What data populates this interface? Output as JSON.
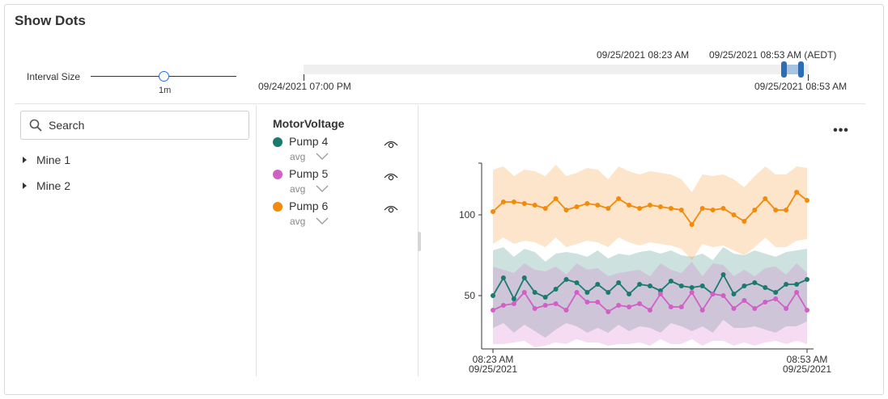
{
  "panel": {
    "title": "Show Dots"
  },
  "interval": {
    "label": "Interval Size",
    "value_label": "1m"
  },
  "timeline": {
    "start_label": "09/24/2021 07:00 PM",
    "end_label": "09/25/2021 08:53 AM",
    "selection_start_label": "09/25/2021 08:23 AM",
    "selection_end_label": "09/25/2021 08:53 AM (AEDT)"
  },
  "search": {
    "placeholder": "Search",
    "value": ""
  },
  "tree": {
    "items": [
      {
        "label": "Mine 1"
      },
      {
        "label": "Mine 2"
      }
    ]
  },
  "legend": {
    "title": "MotorVoltage",
    "items": [
      {
        "name": "Pump 4",
        "aggregation": "avg",
        "color": "#1b7a6e"
      },
      {
        "name": "Pump 5",
        "aggregation": "avg",
        "color": "#d160c6"
      },
      {
        "name": "Pump 6",
        "aggregation": "avg",
        "color": "#f28a0c"
      }
    ]
  },
  "chart_data": {
    "type": "line",
    "show_dots": true,
    "y_ticks": [
      50,
      100
    ],
    "ylim": [
      17,
      132
    ],
    "x_start": {
      "time": "08:23 AM",
      "date": "09/25/2021"
    },
    "x_end": {
      "time": "08:53 AM",
      "date": "09/25/2021"
    },
    "series": [
      {
        "name": "Pump 4",
        "color": "#1b7a6e",
        "values": [
          50,
          61,
          48,
          61,
          52,
          49,
          54,
          60,
          58,
          52,
          57,
          52,
          58,
          51,
          57,
          56,
          53,
          59,
          56,
          55,
          56,
          51,
          63,
          51,
          56,
          58,
          55,
          52,
          57,
          57,
          60
        ],
        "band_upper": [
          78,
          80,
          74,
          79,
          77,
          71,
          76,
          77,
          76,
          74,
          78,
          73,
          76,
          75,
          77,
          78,
          76,
          78,
          75,
          74,
          76,
          72,
          80,
          76,
          75,
          78,
          76,
          74,
          77,
          78,
          79
        ],
        "band_lower": [
          30,
          33,
          27,
          32,
          28,
          24,
          29,
          33,
          31,
          27,
          30,
          27,
          32,
          28,
          31,
          30,
          27,
          33,
          31,
          28,
          31,
          27,
          35,
          30,
          30,
          31,
          29,
          27,
          31,
          31,
          34
        ]
      },
      {
        "name": "Pump 5",
        "color": "#d160c6",
        "values": [
          41,
          44,
          45,
          52,
          42,
          44,
          45,
          41,
          52,
          46,
          46,
          40,
          44,
          43,
          45,
          41,
          51,
          43,
          43,
          52,
          41,
          51,
          50,
          42,
          47,
          42,
          46,
          48,
          42,
          52,
          41
        ],
        "band_upper": [
          68,
          66,
          64,
          70,
          66,
          65,
          68,
          63,
          70,
          66,
          67,
          62,
          64,
          65,
          66,
          62,
          70,
          66,
          64,
          71,
          62,
          70,
          69,
          62,
          66,
          62,
          67,
          68,
          63,
          70,
          64
        ],
        "band_lower": [
          20,
          20,
          21,
          22,
          18,
          19,
          21,
          20,
          23,
          21,
          21,
          19,
          20,
          20,
          21,
          19,
          23,
          20,
          20,
          23,
          19,
          22,
          22,
          19,
          21,
          19,
          21,
          22,
          20,
          22,
          20
        ]
      },
      {
        "name": "Pump 6",
        "color": "#f28a0c",
        "values": [
          102,
          108,
          108,
          107,
          106,
          104,
          110,
          103,
          105,
          107,
          106,
          104,
          110,
          106,
          104,
          106,
          105,
          104,
          103,
          94,
          104,
          103,
          104,
          100,
          96,
          103,
          110,
          103,
          103,
          114,
          109
        ],
        "band_upper": [
          128,
          130,
          124,
          128,
          127,
          124,
          131,
          124,
          126,
          129,
          128,
          122,
          130,
          127,
          125,
          127,
          126,
          125,
          122,
          114,
          125,
          124,
          125,
          122,
          117,
          124,
          130,
          125,
          125,
          130,
          129
        ],
        "band_lower": [
          82,
          86,
          82,
          84,
          83,
          80,
          86,
          80,
          82,
          84,
          83,
          80,
          86,
          83,
          81,
          83,
          82,
          81,
          79,
          72,
          82,
          80,
          81,
          78,
          75,
          80,
          86,
          80,
          80,
          84,
          85
        ]
      }
    ]
  }
}
